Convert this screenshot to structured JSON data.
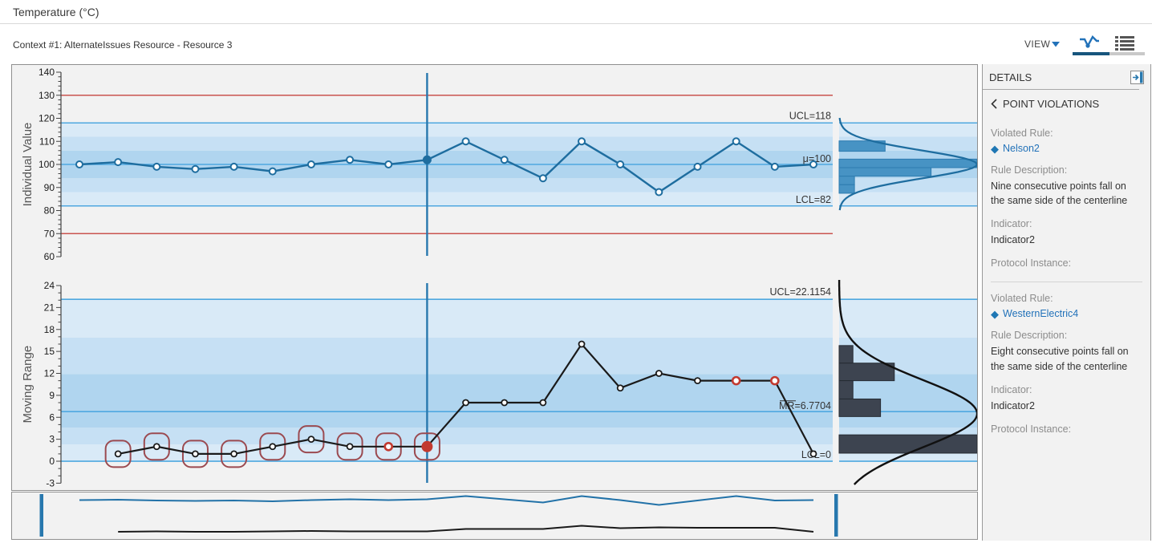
{
  "header": {
    "title": "Temperature (°C)",
    "context_line": "Context #1: AlternateIssues Resource - Resource 3"
  },
  "toolbar": {
    "view_label": "VIEW",
    "chart_view_icon": "control-chart-icon",
    "list_view_icon": "list-icon"
  },
  "sidebar": {
    "title": "DETAILS",
    "collapse_icon": "collapse-panel-right-icon",
    "back_icon": "chevron-left-icon",
    "section_title": "POINT VIOLATIONS",
    "violations": [
      {
        "rule_label": "Violated Rule:",
        "rule_icon": "diamond-icon",
        "rule_name": "Nelson2",
        "description_label": "Rule Description:",
        "description": "Nine consecutive points fall on the same side of the centerline",
        "indicator_label": "Indicator:",
        "indicator": "Indicator2",
        "protocol_label": "Protocol Instance:"
      },
      {
        "rule_label": "Violated Rule:",
        "rule_icon": "diamond-icon",
        "rule_name": "WesternElectric4",
        "description_label": "Rule Description:",
        "description": "Eight consecutive points fall on the same side of the centerline",
        "indicator_label": "Indicator:",
        "indicator": "Indicator2",
        "protocol_label": "Protocol Instance:"
      }
    ]
  },
  "chart_data": [
    {
      "type": "line",
      "name": "individuals",
      "ylabel": "Individual Value",
      "ylim": [
        60,
        140
      ],
      "ytick_step": 10,
      "minor_tick_step": 2,
      "centerline": 100,
      "ucl": 118,
      "lcl": 82,
      "upper_red_line": 130,
      "lower_red_line": 70,
      "ucl_label": "UCL=118",
      "center_label": "μ=100",
      "lcl_label": "LCL=82",
      "zone_edges": [
        82,
        88,
        94,
        106,
        112,
        118
      ],
      "values": [
        100,
        101,
        99,
        98,
        99,
        97,
        100,
        102,
        100,
        102,
        110,
        102,
        94,
        110,
        100,
        88,
        99,
        110,
        99,
        100
      ],
      "selected_index": 9,
      "x_offset": 0,
      "histogram": {
        "bars": [
          {
            "from": 105.7,
            "to": 110.2,
            "count": 3
          },
          {
            "from": 98.6,
            "to": 102.3,
            "count": 9
          },
          {
            "from": 94.9,
            "to": 98.6,
            "count": 6
          },
          {
            "from": 91.2,
            "to": 94.9,
            "count": 1
          },
          {
            "from": 87.5,
            "to": 91.2,
            "count": 1
          }
        ],
        "curve": {
          "mean": 100,
          "sigma": 6
        }
      }
    },
    {
      "type": "line",
      "name": "moving_range",
      "ylabel": "Moving Range",
      "ylim": [
        -3,
        24
      ],
      "ytick_step": 3,
      "minor_tick_step": 1,
      "centerline": 6.7704,
      "ucl": 22.1154,
      "lcl": 0,
      "ucl_label": "UCL=22.1154",
      "center_label": "MR=6.7704",
      "center_label_overline_chars": "MR",
      "lcl_label": "LCL=0",
      "zone_edges": [
        0,
        2.3,
        4.6,
        11.9,
        16.9,
        22.1154
      ],
      "values": [
        1,
        2,
        1,
        1,
        2,
        3,
        2,
        2,
        2,
        8,
        8,
        8,
        16,
        10,
        12,
        11,
        11,
        11,
        1
      ],
      "selected_index": 8,
      "x_offset": 1,
      "red_marker_indices": [
        7,
        16,
        17
      ],
      "violation_box_indices": [
        0,
        1,
        2,
        3,
        4,
        5,
        6,
        7,
        8
      ],
      "histogram": {
        "bars": [
          {
            "from": 13.4,
            "to": 15.8,
            "count": 1
          },
          {
            "from": 11.0,
            "to": 13.4,
            "count": 4
          },
          {
            "from": 8.5,
            "to": 11.0,
            "count": 1
          },
          {
            "from": 6.1,
            "to": 8.5,
            "count": 3
          },
          {
            "from": 1.1,
            "to": 3.6,
            "count": 10
          }
        ],
        "curve": {
          "mean": 6.5,
          "sigma": 4.6
        }
      }
    }
  ],
  "navigator": {
    "series": [
      "individuals",
      "moving_range"
    ]
  },
  "colors": {
    "accent_blue": "#2272b9",
    "line_blue": "#1e6d9f",
    "limit_blue": "#4fa8e0",
    "zone_light": "#d9eaf7",
    "zone_mid": "#c6e0f4",
    "zone_dark": "#b0d5ef",
    "red_line": "#c9544f",
    "violation_red": "#c23a30",
    "violation_box": "#9b4a50",
    "hist_bar_blue": "#4793c4",
    "hist_bar_dark": "#3d4450",
    "cursor_blue": "#2878ae"
  }
}
